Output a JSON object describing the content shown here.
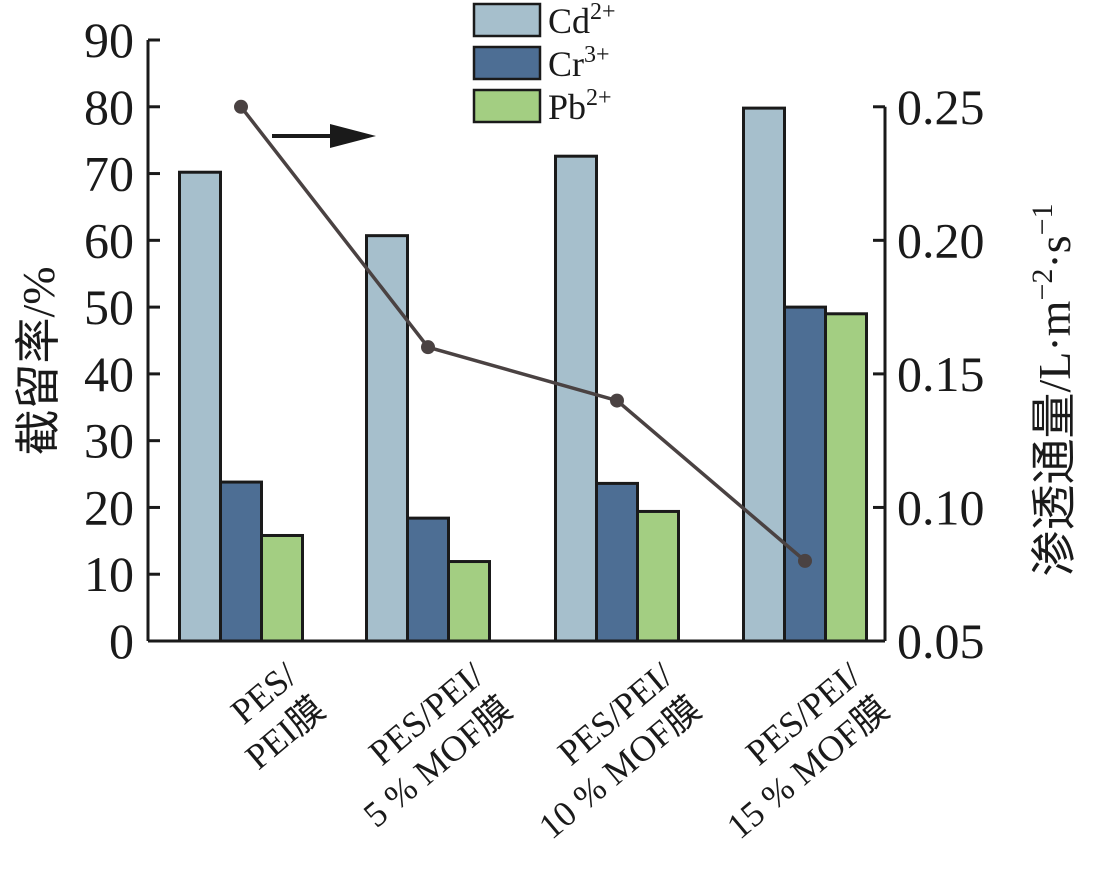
{
  "chart_data": {
    "type": "bar",
    "categories": [
      [
        "PES/",
        "PEI膜"
      ],
      [
        "PES/PEI/",
        "5 % MOF膜"
      ],
      [
        "PES/PEI/",
        "10 % MOF膜"
      ],
      [
        "PES/PEI/",
        "15 % MOF膜"
      ]
    ],
    "series": [
      {
        "name": "Cd",
        "sup": "2+",
        "color": "#a6bfcc",
        "values": [
          70.2,
          60.7,
          72.6,
          79.8
        ]
      },
      {
        "name": "Cr",
        "sup": "3+",
        "color": "#4d6e94",
        "values": [
          23.8,
          18.4,
          23.6,
          50.0
        ]
      },
      {
        "name": "Pb",
        "sup": "2+",
        "color": "#a3ce82",
        "values": [
          15.8,
          11.9,
          19.4,
          49.0
        ]
      }
    ],
    "line_series": {
      "axis": "right",
      "color": "#4a4242",
      "values": [
        0.25,
        0.16,
        0.14,
        0.08
      ]
    },
    "ylabel": "截留率/%",
    "ylabel_right": {
      "main": "渗透通量/L·m",
      "sup1": "−2",
      "mid": "·s",
      "sup2": "−1"
    },
    "ylim": [
      0,
      90
    ],
    "yticks": [
      0,
      10,
      20,
      30,
      40,
      50,
      60,
      70,
      80,
      90
    ],
    "ylim_right": [
      0.05,
      0.25
    ],
    "yticks_right": [
      "0.05",
      "0.10",
      "0.15",
      "0.20",
      "0.25"
    ],
    "legend_position": "top-center",
    "grid": false
  }
}
